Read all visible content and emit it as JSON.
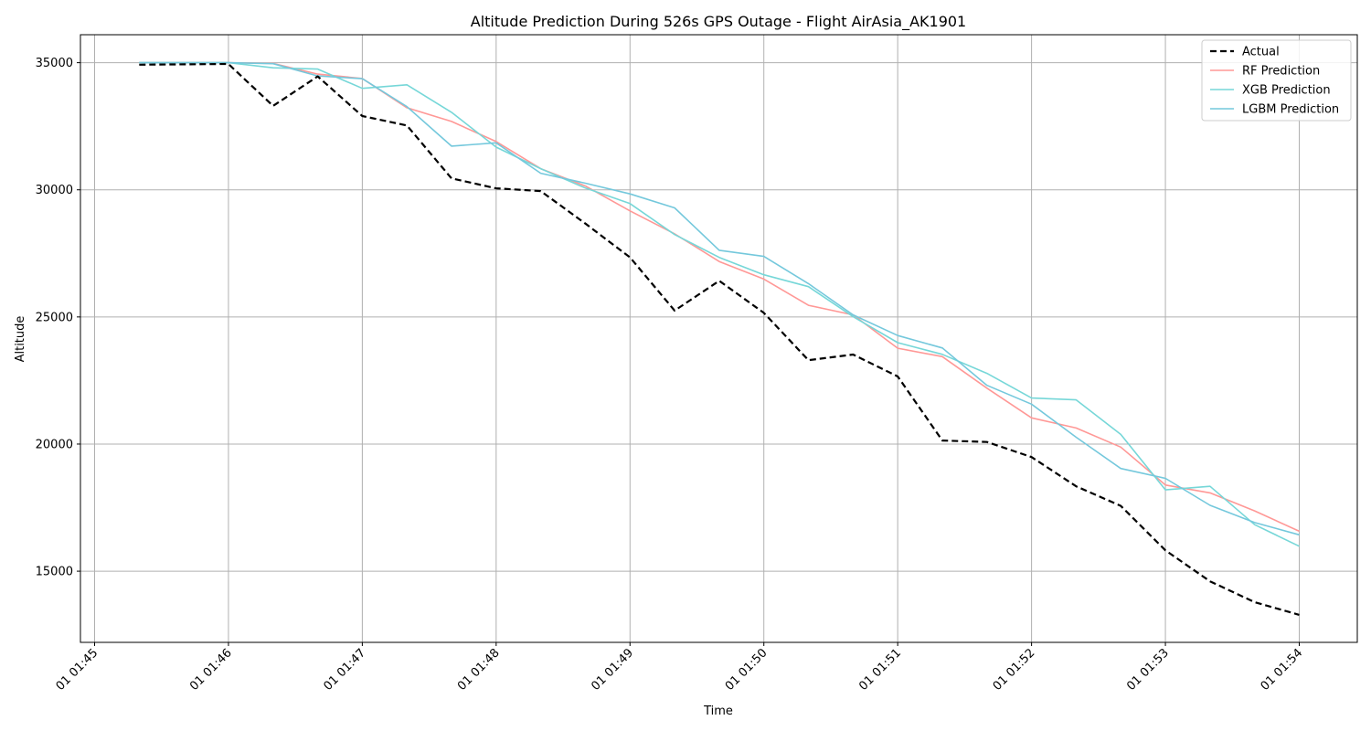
{
  "chart_data": {
    "type": "line",
    "title": "Altitude Prediction During 526s GPS Outage - Flight AirAsia_AK1901",
    "xlabel": "Time",
    "ylabel": "Altitude",
    "x_ticks": [
      "01 01:45",
      "01 01:46",
      "01 01:47",
      "01 01:48",
      "01 01:49",
      "01 01:50",
      "01 01:51",
      "01 01:52",
      "01 01:53",
      "01 01:54"
    ],
    "y_ticks": [
      15000,
      20000,
      25000,
      30000,
      35000
    ],
    "ylim": [
      12200,
      36100
    ],
    "grid": true,
    "legend_position": "top-right",
    "x": [
      "01:45:20",
      "01:46:00",
      "01:46:20",
      "01:46:40",
      "01:47:00",
      "01:47:20",
      "01:47:40",
      "01:48:00",
      "01:48:20",
      "01:48:40",
      "01:49:00",
      "01:49:20",
      "01:49:40",
      "01:50:00",
      "01:50:20",
      "01:50:40",
      "01:51:00",
      "01:51:20",
      "01:51:40",
      "01:52:00",
      "01:52:20",
      "01:52:40",
      "01:53:00",
      "01:53:20",
      "01:53:40",
      "01:54:00"
    ],
    "series": [
      {
        "name": "Actual",
        "color": "#000000",
        "dashed": true,
        "values": [
          34920,
          34950,
          33300,
          34460,
          32900,
          32530,
          30450,
          30060,
          29950,
          28670,
          27340,
          25250,
          26420,
          25160,
          23300,
          23520,
          22660,
          20140,
          20080,
          19490,
          18340,
          17570,
          15820,
          14600,
          13780,
          13280
        ]
      },
      {
        "name": "RF Prediction",
        "color": "#ff9896",
        "dashed": false,
        "values": [
          35000,
          35000,
          34970,
          34550,
          34380,
          33230,
          32690,
          31900,
          30830,
          30150,
          29170,
          28270,
          27180,
          26490,
          25460,
          25080,
          23770,
          23440,
          22200,
          21030,
          20630,
          19880,
          18390,
          18080,
          17370,
          16570
        ]
      },
      {
        "name": "XGB Prediction",
        "color": "#76d7d8",
        "dashed": false,
        "values": [
          35000,
          35000,
          34800,
          34750,
          33990,
          34130,
          33050,
          31680,
          30830,
          30070,
          29460,
          28240,
          27340,
          26660,
          26190,
          25010,
          23990,
          23530,
          22780,
          21810,
          21740,
          20380,
          18200,
          18340,
          16830,
          15980
        ]
      },
      {
        "name": "LGBM Prediction",
        "color": "#74c8dc",
        "dashed": false,
        "values": [
          35000,
          35000,
          34960,
          34480,
          34370,
          33270,
          31720,
          31850,
          30650,
          30260,
          29840,
          29290,
          27620,
          27380,
          26310,
          25080,
          24270,
          23780,
          22310,
          21570,
          20270,
          19040,
          18650,
          17590,
          16910,
          16430
        ]
      }
    ]
  }
}
